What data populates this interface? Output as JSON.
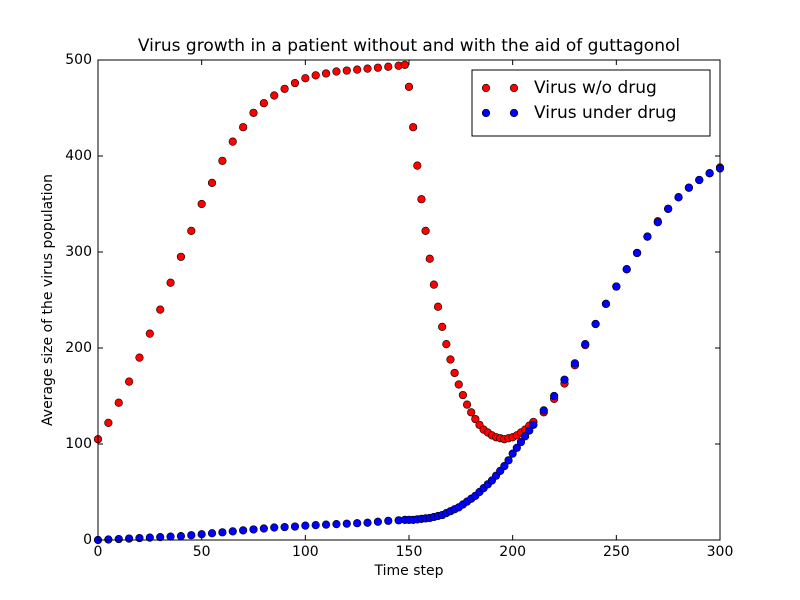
{
  "chart_data": {
    "type": "scatter",
    "title": "Virus growth in a patient without and with the aid of guttagonol",
    "xlabel": "Time step",
    "ylabel": "Average size of the virus population",
    "xlim": [
      0,
      300
    ],
    "ylim": [
      0,
      500
    ],
    "xticks": [
      0,
      50,
      100,
      150,
      200,
      250,
      300
    ],
    "yticks": [
      0,
      100,
      200,
      300,
      400,
      500
    ],
    "legend": "upper right",
    "x": [
      0,
      5,
      10,
      15,
      20,
      25,
      30,
      35,
      40,
      45,
      50,
      55,
      60,
      65,
      70,
      75,
      80,
      85,
      90,
      95,
      100,
      105,
      110,
      115,
      120,
      125,
      130,
      135,
      140,
      145,
      148,
      150,
      152,
      154,
      156,
      158,
      160,
      162,
      164,
      166,
      168,
      170,
      172,
      174,
      176,
      178,
      180,
      182,
      184,
      186,
      188,
      190,
      192,
      194,
      196,
      198,
      200,
      202,
      204,
      206,
      208,
      210,
      215,
      220,
      225,
      230,
      235,
      240,
      245,
      250,
      255,
      260,
      265,
      270,
      275,
      280,
      285,
      290,
      295,
      300
    ],
    "series": [
      {
        "name": "Virus w/o drug",
        "color": "#ff0000",
        "values": [
          105,
          122,
          143,
          165,
          190,
          215,
          240,
          268,
          295,
          322,
          350,
          372,
          395,
          415,
          430,
          445,
          455,
          463,
          470,
          476,
          481,
          484,
          486,
          488,
          489,
          490,
          491,
          492,
          493,
          494,
          495,
          472,
          430,
          390,
          355,
          322,
          293,
          266,
          243,
          222,
          204,
          188,
          174,
          162,
          151,
          141,
          133,
          126,
          120,
          115,
          112,
          109,
          107,
          106,
          105,
          106,
          107,
          109,
          112,
          115,
          119,
          123,
          133,
          147,
          163,
          182,
          203,
          225,
          246,
          264,
          282,
          299,
          316,
          332,
          345,
          357,
          367,
          375,
          382,
          388
        ]
      },
      {
        "name": "Virus under drug",
        "color": "#0000ff",
        "values": [
          0,
          0.5,
          1,
          1.5,
          2,
          2.5,
          3,
          3.5,
          4,
          5,
          6,
          7,
          8,
          9,
          10,
          11,
          12,
          13,
          13.5,
          14,
          15,
          15.5,
          16,
          16.5,
          17,
          17.5,
          18,
          19,
          20,
          20.5,
          21,
          21,
          21,
          21.5,
          22,
          22.5,
          23,
          24,
          25,
          26,
          28,
          30,
          32,
          34,
          37,
          40,
          43,
          46,
          50,
          54,
          58,
          62,
          67,
          72,
          77,
          83,
          90,
          96,
          102,
          108,
          114,
          120,
          135,
          150,
          167,
          184,
          204,
          225,
          246,
          264,
          282,
          299,
          316,
          331,
          345,
          357,
          367,
          375,
          382,
          387
        ]
      }
    ]
  }
}
